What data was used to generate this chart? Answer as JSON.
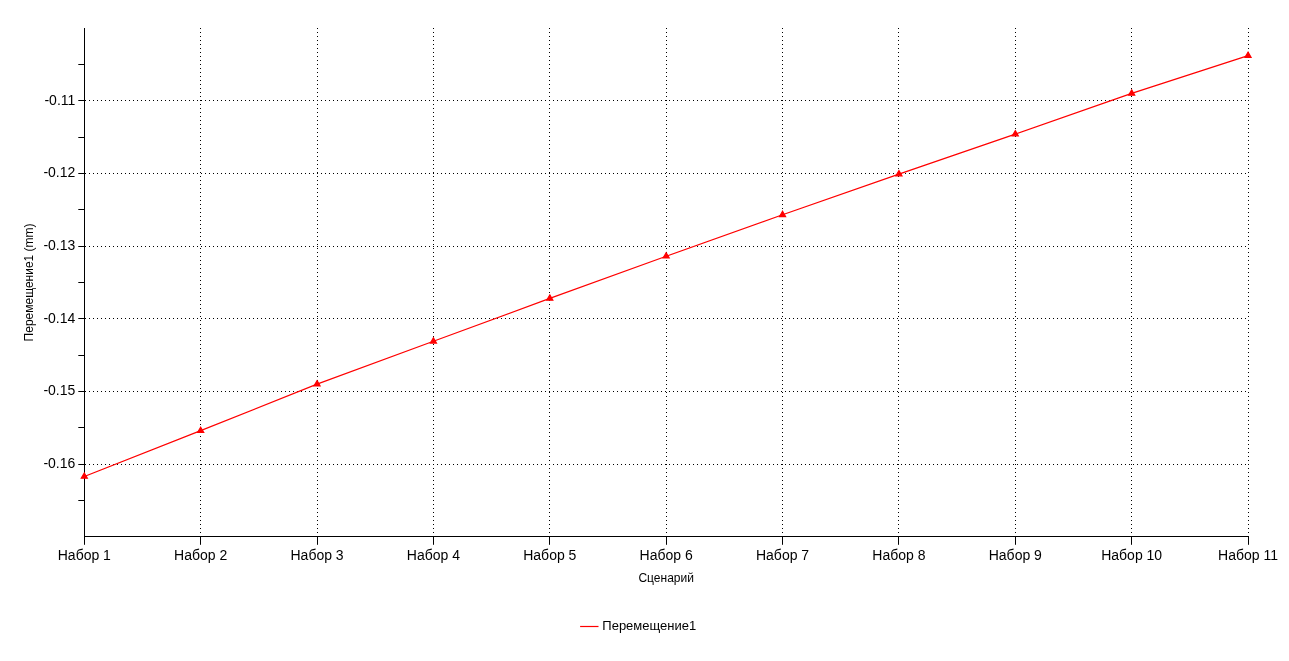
{
  "chart_data": {
    "type": "line",
    "xlabel": "Сценарий",
    "ylabel": "Перемещение1 (mm)",
    "categories": [
      "Набор 1",
      "Набор 2",
      "Набор 3",
      "Набор 4",
      "Набор 5",
      "Набор 6",
      "Набор 7",
      "Набор 8",
      "Набор 9",
      "Набор 10",
      "Набор 11"
    ],
    "series": [
      {
        "name": "Перемещение1",
        "color": "#ff0000",
        "values": [
          -0.1617,
          -0.1554,
          -0.149,
          -0.1431,
          -0.1372,
          -0.1314,
          -0.1257,
          -0.1201,
          -0.1146,
          -0.109,
          -0.1038
        ]
      }
    ],
    "ylim": [
      -0.17,
      -0.1
    ],
    "yticks": [
      {
        "value": -0.165,
        "label": null
      },
      -0.16,
      {
        "value": -0.155,
        "label": null
      },
      -0.15,
      {
        "value": -0.145,
        "label": null
      },
      -0.14,
      {
        "value": -0.135,
        "label": null
      },
      -0.13,
      {
        "value": -0.125,
        "label": null
      },
      -0.12,
      {
        "value": -0.115,
        "label": null
      },
      -0.11,
      {
        "value": -0.105,
        "label": null
      }
    ],
    "grid": true,
    "legend": "bottom",
    "marker": "triangle",
    "line_style": "solid"
  }
}
